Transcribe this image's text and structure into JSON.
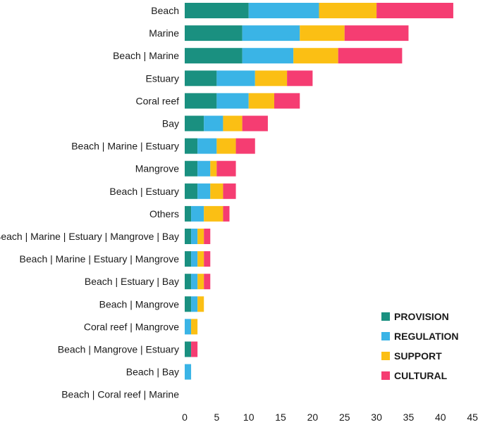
{
  "chart_data": {
    "type": "bar",
    "orientation": "horizontal",
    "stacked": true,
    "title": "",
    "xlabel": "",
    "ylabel": "",
    "xlim": [
      0,
      45
    ],
    "x_ticks": [
      0,
      5,
      10,
      15,
      20,
      25,
      30,
      35,
      40,
      45
    ],
    "grid": false,
    "legend_position": "bottom-right",
    "categories": [
      "Beach",
      "Marine",
      "Beach | Marine",
      "Estuary",
      "Coral reef",
      "Bay",
      "Beach | Marine | Estuary",
      "Mangrove",
      "Beach | Estuary",
      "Others",
      "Beach | Marine | Estuary | Mangrove | Bay",
      "Beach | Marine | Estuary | Mangrove",
      "Beach | Estuary | Bay",
      "Beach | Mangrove",
      "Coral reef | Mangrove",
      "Beach | Mangrove | Estuary",
      "Beach | Bay",
      "Beach | Coral reef | Marine"
    ],
    "series": [
      {
        "name": "PROVISION",
        "color": "#1a9080",
        "values": [
          10,
          9,
          9,
          5,
          5,
          3,
          2,
          2,
          2,
          1,
          1,
          1,
          1,
          1,
          0,
          1,
          0,
          0
        ]
      },
      {
        "name": "REGULATION",
        "color": "#3ab4e6",
        "values": [
          11,
          9,
          8,
          6,
          5,
          3,
          3,
          2,
          2,
          2,
          1,
          1,
          1,
          1,
          1,
          0,
          1,
          0
        ]
      },
      {
        "name": "SUPPORT",
        "color": "#fbbf14",
        "values": [
          9,
          7,
          7,
          5,
          4,
          3,
          3,
          1,
          2,
          3,
          1,
          1,
          1,
          1,
          1,
          0,
          0,
          0
        ]
      },
      {
        "name": "CULTURAL",
        "color": "#f53d72",
        "values": [
          12,
          10,
          10,
          4,
          4,
          4,
          3,
          3,
          2,
          1,
          1,
          1,
          1,
          0,
          0,
          1,
          0,
          0
        ]
      }
    ]
  }
}
